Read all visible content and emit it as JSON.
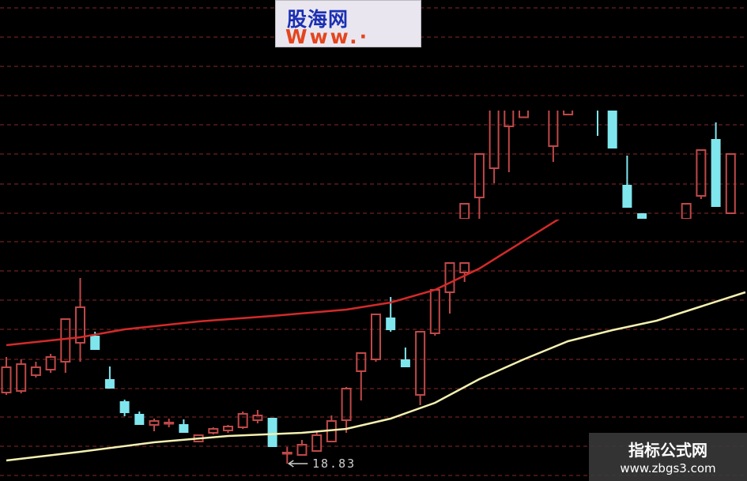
{
  "logo": {
    "cn": "股海网",
    "en": "Www.·"
  },
  "watermark": {
    "title": "指标公式网",
    "url": "www.zbgs3.com"
  },
  "colors": {
    "background": "#000000",
    "up": "#c04848",
    "down": "#7fe6ee",
    "ma_red": "#d42a2a",
    "ma_yellow": "#f4f0b0",
    "grid": "#5a1a1a"
  },
  "chart_data": {
    "type": "candlestick",
    "title": "",
    "grid": true,
    "annotation": {
      "text": "18.83",
      "candle_index": 19,
      "price": 18.83
    },
    "candles": [
      {
        "o": 20.63,
        "h": 21.53,
        "l": 20.57,
        "c": 21.27
      },
      {
        "o": 20.67,
        "h": 21.47,
        "l": 20.61,
        "c": 21.35
      },
      {
        "o": 21.07,
        "h": 21.41,
        "l": 21.01,
        "c": 21.27
      },
      {
        "o": 21.21,
        "h": 21.61,
        "l": 21.13,
        "c": 21.53
      },
      {
        "o": 21.41,
        "h": 22.51,
        "l": 21.13,
        "c": 22.49
      },
      {
        "o": 21.89,
        "h": 23.53,
        "l": 21.41,
        "c": 22.79
      },
      {
        "o": 22.07,
        "h": 22.17,
        "l": 21.71,
        "c": 21.71
      },
      {
        "o": 20.97,
        "h": 21.29,
        "l": 20.73,
        "c": 20.73
      },
      {
        "o": 20.41,
        "h": 20.45,
        "l": 20.03,
        "c": 20.11
      },
      {
        "o": 20.09,
        "h": 20.15,
        "l": 19.81,
        "c": 19.81
      },
      {
        "o": 19.81,
        "h": 19.97,
        "l": 19.65,
        "c": 19.91
      },
      {
        "o": 19.87,
        "h": 19.97,
        "l": 19.75,
        "c": 19.87
      },
      {
        "o": 19.83,
        "h": 19.95,
        "l": 19.61,
        "c": 19.61
      },
      {
        "o": 19.39,
        "h": 19.55,
        "l": 19.39,
        "c": 19.55
      },
      {
        "o": 19.61,
        "h": 19.75,
        "l": 19.57,
        "c": 19.71
      },
      {
        "o": 19.67,
        "h": 19.81,
        "l": 19.61,
        "c": 19.77
      },
      {
        "o": 19.75,
        "h": 20.15,
        "l": 19.71,
        "c": 20.09
      },
      {
        "o": 19.93,
        "h": 20.19,
        "l": 19.85,
        "c": 20.05
      },
      {
        "o": 19.99,
        "h": 19.99,
        "l": 19.25,
        "c": 19.25
      },
      {
        "o": 19.11,
        "h": 19.25,
        "l": 18.83,
        "c": 19.11
      },
      {
        "o": 19.05,
        "h": 19.43,
        "l": 19.05,
        "c": 19.31
      },
      {
        "o": 19.15,
        "h": 19.67,
        "l": 19.15,
        "c": 19.55
      },
      {
        "o": 19.39,
        "h": 20.05,
        "l": 19.39,
        "c": 19.91
      },
      {
        "o": 19.93,
        "h": 20.77,
        "l": 19.61,
        "c": 20.73
      },
      {
        "o": 21.17,
        "h": 21.63,
        "l": 20.43,
        "c": 21.63
      },
      {
        "o": 21.47,
        "h": 22.61,
        "l": 21.41,
        "c": 22.61
      },
      {
        "o": 22.53,
        "h": 23.05,
        "l": 22.17,
        "c": 22.21
      },
      {
        "o": 21.47,
        "h": 21.77,
        "l": 21.27,
        "c": 21.27
      },
      {
        "o": 20.57,
        "h": 22.17,
        "l": 20.31,
        "c": 22.17
      },
      {
        "o": 22.13,
        "h": 23.23,
        "l": 22.07,
        "c": 23.23
      },
      {
        "o": 23.17,
        "h": 23.91,
        "l": 22.63,
        "c": 23.91
      },
      {
        "o": 23.67,
        "h": 23.91,
        "l": 23.43,
        "c": 23.91
      }
    ],
    "candles_upper_start_index": 31,
    "candles_upper": [
      {
        "o": 25.03,
        "h": 25.41,
        "l": 25.03,
        "c": 25.41
      },
      {
        "o": 25.57,
        "h": 26.67,
        "l": 25.03,
        "c": 26.67
      },
      {
        "o": 26.31,
        "h": 28.2,
        "l": 25.93,
        "c": 28.2
      },
      {
        "o": 27.37,
        "h": 28.2,
        "l": 26.21,
        "c": 28.2
      },
      {
        "o": 27.6,
        "h": 28.2,
        "l": 27.6,
        "c": 28.2
      },
      null,
      {
        "o": 26.87,
        "h": 28.2,
        "l": 26.47,
        "c": 28.2
      },
      {
        "o": 27.67,
        "h": 28.2,
        "l": 27.67,
        "c": 28.2
      },
      null,
      {
        "o": 28.3,
        "h": 28.3,
        "l": 27.13,
        "c": 28.2
      },
      {
        "o": 28.3,
        "h": 28.3,
        "l": 26.81,
        "c": 26.81
      },
      {
        "o": 25.89,
        "h": 26.63,
        "l": 25.31,
        "c": 25.31
      },
      {
        "o": 25.17,
        "h": 25.17,
        "l": 25.03,
        "c": 25.03
      },
      null,
      null,
      {
        "o": 25.03,
        "h": 25.41,
        "l": 25.03,
        "c": 25.41
      },
      {
        "o": 25.61,
        "h": 26.77,
        "l": 25.53,
        "c": 26.77
      },
      {
        "o": 27.05,
        "h": 27.47,
        "l": 25.33,
        "c": 25.33
      },
      {
        "o": 25.17,
        "h": 26.67,
        "l": 25.17,
        "c": 26.67
      }
    ],
    "ma_red": [
      [
        0,
        21.83
      ],
      [
        5,
        22.03
      ],
      [
        8,
        22.23
      ],
      [
        13,
        22.43
      ],
      [
        18,
        22.57
      ],
      [
        23,
        22.73
      ],
      [
        26,
        22.91
      ],
      [
        29,
        23.23
      ],
      [
        32,
        23.77
      ],
      [
        35,
        24.47
      ],
      [
        38,
        25.17
      ],
      [
        41,
        25.67
      ],
      [
        44,
        25.91
      ],
      [
        46,
        25.95
      ]
    ],
    "ma_yellow": [
      [
        0,
        18.91
      ],
      [
        5,
        19.13
      ],
      [
        10,
        19.37
      ],
      [
        15,
        19.53
      ],
      [
        20,
        19.61
      ],
      [
        23,
        19.71
      ],
      [
        26,
        19.97
      ],
      [
        29,
        20.37
      ],
      [
        32,
        20.97
      ],
      [
        35,
        21.47
      ],
      [
        38,
        21.93
      ],
      [
        41,
        22.21
      ],
      [
        44,
        22.45
      ],
      [
        47,
        22.81
      ],
      [
        50,
        23.17
      ]
    ]
  }
}
